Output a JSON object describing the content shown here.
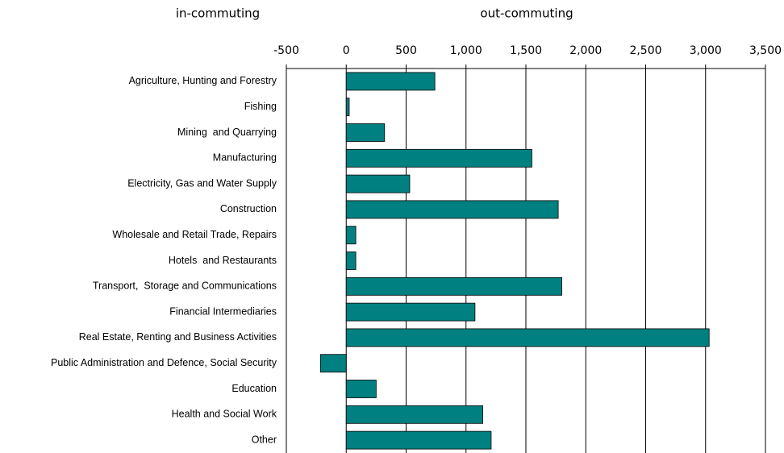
{
  "chart_data": {
    "type": "bar",
    "orientation": "horizontal",
    "annotations": [
      "in-commuting",
      "out-commuting"
    ],
    "categories": [
      "Agriculture, Hunting and Forestry",
      "Fishing",
      "Mining  and Quarrying",
      "Manufacturing",
      "Electricity, Gas and Water Supply",
      "Construction",
      "Wholesale and Retail Trade, Repairs",
      "Hotels  and Restaurants",
      "Transport,  Storage and Communications",
      "Financial Intermediaries",
      "Real Estate, Renting and Business Activities",
      "Public Administration and Defence, Social Security",
      "Education",
      "Health and Social Work",
      "Other"
    ],
    "values": [
      740,
      25,
      320,
      1550,
      530,
      1770,
      80,
      80,
      1800,
      1075,
      3030,
      -215,
      250,
      1140,
      1210
    ],
    "color": "#008080",
    "xlim": [
      -500,
      3500
    ],
    "xticks": [
      -500,
      0,
      500,
      {
        "value": 1000,
        "label": "1,000"
      },
      {
        "value": 1500,
        "label": "1,500"
      },
      {
        "value": 2000,
        "label": "2,000"
      },
      {
        "value": 2500,
        "label": "2,500"
      },
      {
        "value": 3000,
        "label": "3,000"
      },
      {
        "value": 3500,
        "label": "3,500"
      }
    ],
    "grid": true
  }
}
